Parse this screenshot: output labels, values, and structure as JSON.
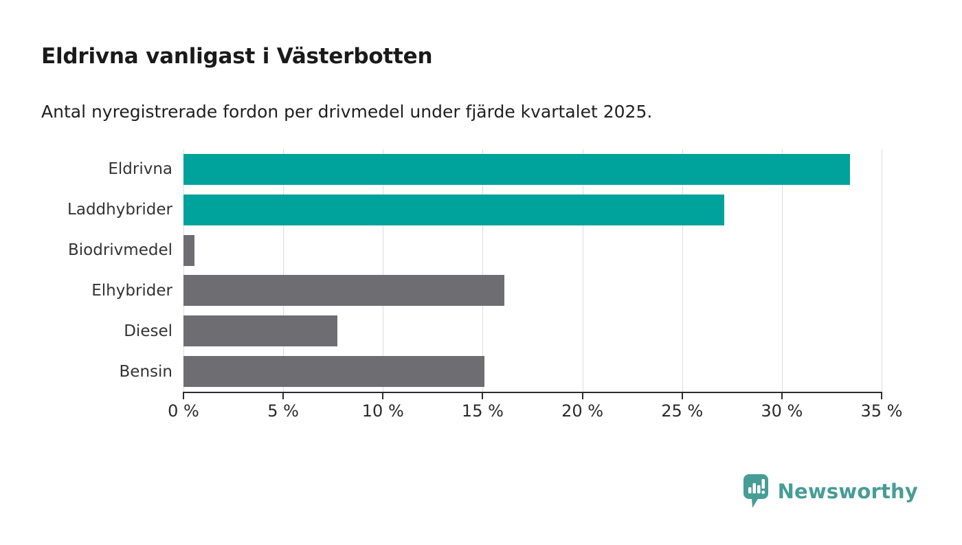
{
  "title": "Eldrivna vanligast i Västerbotten",
  "subtitle": "Antal nyregistrerade fordon per drivmedel under fjärde kvartalet 2025.",
  "chart_data": {
    "type": "bar",
    "orientation": "horizontal",
    "title": "Eldrivna vanligast i Västerbotten",
    "subtitle": "Antal nyregistrerade fordon per drivmedel under fjärde kvartalet 2025.",
    "categories": [
      "Eldrivna",
      "Laddhybrider",
      "Biodrivmedel",
      "Elhybrider",
      "Diesel",
      "Bensin"
    ],
    "values": [
      33.4,
      27.1,
      0.55,
      16.1,
      7.7,
      15.1
    ],
    "unit": "%",
    "bar_colors": [
      "#00a39b",
      "#00a39b",
      "#6d6d72",
      "#6d6d72",
      "#6d6d72",
      "#6d6d72"
    ],
    "xlim": [
      0,
      35
    ],
    "x_ticks": [
      0,
      5,
      10,
      15,
      20,
      25,
      30,
      35
    ],
    "x_tick_labels": [
      "0 %",
      "5 %",
      "10 %",
      "15 %",
      "20 %",
      "25 %",
      "30 %",
      "35 %"
    ],
    "grid": "vertical-gridlines-on",
    "legend": "none",
    "xlabel": "",
    "ylabel": ""
  },
  "colors": {
    "accent_teal": "#00a39b",
    "muted_gray": "#6d6d72",
    "gridline": "#dcdcdc",
    "axis": "#2b2b2b",
    "logo_teal": "#469d96"
  },
  "footer": {
    "brand": "Newsworthy",
    "logo_icon": "newsworthy-pin-barchart-icon"
  }
}
